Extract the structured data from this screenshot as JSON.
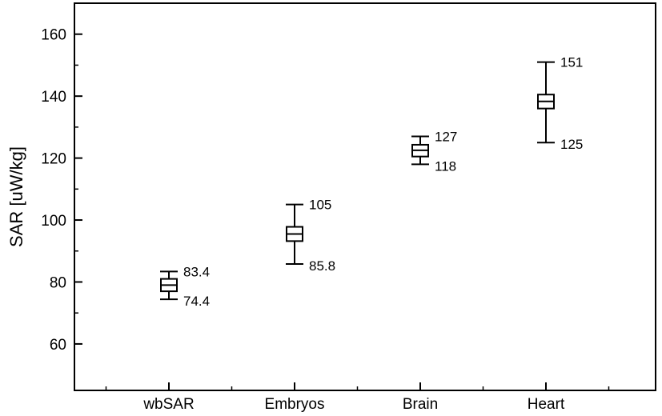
{
  "chart_data": {
    "type": "box",
    "title": "",
    "xlabel": "",
    "ylabel": "SAR [uW/kg]",
    "ylim": [
      45,
      170
    ],
    "yticks": [
      60,
      80,
      100,
      120,
      140,
      160
    ],
    "ytick_labels": [
      "60",
      "80",
      "100",
      "120",
      "140",
      "160"
    ],
    "categories": [
      "wbSAR",
      "Embryos",
      "Brain",
      "Heart"
    ],
    "boxes": [
      {
        "category": "wbSAR",
        "min": 74.4,
        "q1": 77.0,
        "median": 79.0,
        "q3": 81.0,
        "max": 83.4,
        "min_label": "74.4",
        "max_label": "83.4"
      },
      {
        "category": "Embryos",
        "min": 85.8,
        "q1": 93.2,
        "median": 95.5,
        "q3": 97.8,
        "max": 105,
        "min_label": "85.8",
        "max_label": "105"
      },
      {
        "category": "Brain",
        "min": 118,
        "q1": 120.5,
        "median": 122.5,
        "q3": 124.3,
        "max": 127,
        "min_label": "118",
        "max_label": "127"
      },
      {
        "category": "Heart",
        "min": 125,
        "q1": 136.0,
        "median": 138.3,
        "q3": 140.5,
        "max": 151,
        "min_label": "125",
        "max_label": "151"
      }
    ],
    "grid": false,
    "legend": "none"
  }
}
